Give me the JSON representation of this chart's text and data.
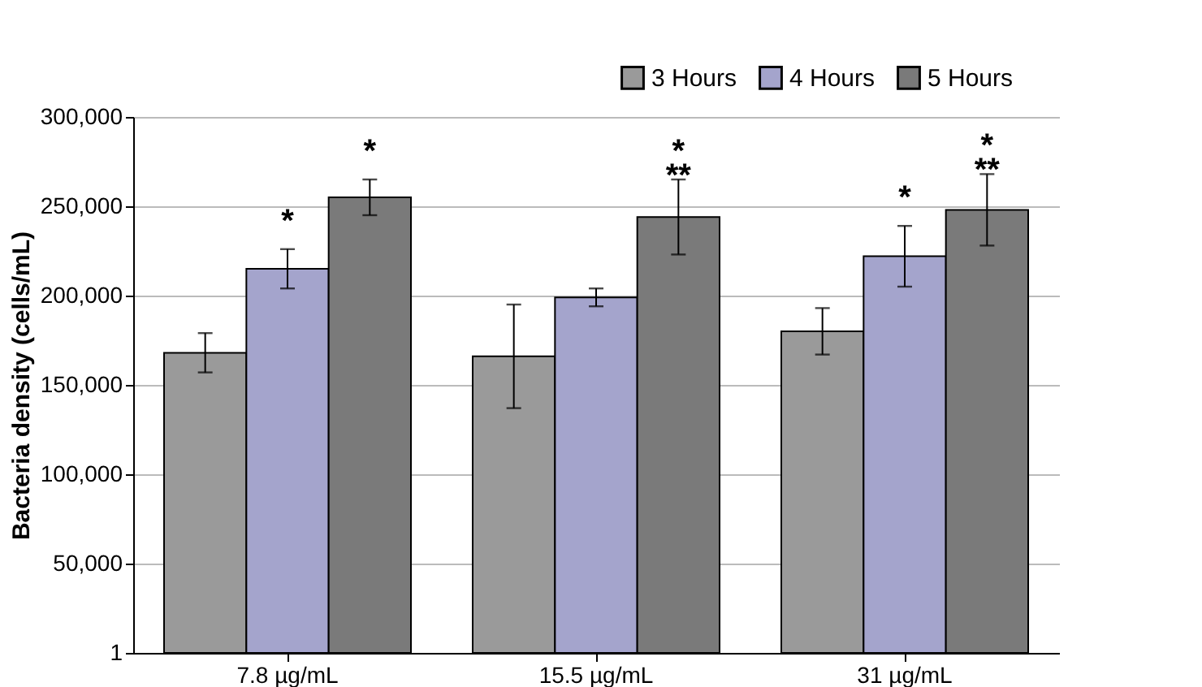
{
  "chart_data": {
    "type": "bar",
    "ylabel": "Bacteria density (cells/mL)",
    "categories": [
      "7.8 µg/mL",
      "15.5 µg/mL",
      "31 µg/mL"
    ],
    "series": [
      {
        "name": "3 Hours",
        "color": "#9a9a9a",
        "values": [
          168000,
          166000,
          180000
        ],
        "errors": [
          11000,
          29000,
          13000
        ]
      },
      {
        "name": "4 Hours",
        "color": "#a4a4cc",
        "values": [
          215000,
          199000,
          222000
        ],
        "errors": [
          11000,
          5000,
          17000
        ],
        "value_labels": [
          "*",
          null,
          "*"
        ]
      },
      {
        "name": "5 Hours",
        "color": "#7a7a7a",
        "values": [
          255000,
          244000,
          248000
        ],
        "errors": [
          10000,
          21000,
          20000
        ],
        "value_labels": [
          "*",
          "*\n**",
          "*\n**"
        ]
      }
    ],
    "ylim": [
      1,
      300000
    ],
    "yticks": [
      1,
      {
        "value": 50000,
        "label": "50,000"
      },
      {
        "value": 100000,
        "label": "100,000"
      },
      {
        "value": 150000,
        "label": "150,000"
      },
      {
        "value": 200000,
        "label": "200,000"
      },
      {
        "value": 250000,
        "label": "250,000"
      },
      {
        "value": 300000,
        "label": "300,000"
      }
    ],
    "grid": "y",
    "legend": "top right"
  }
}
